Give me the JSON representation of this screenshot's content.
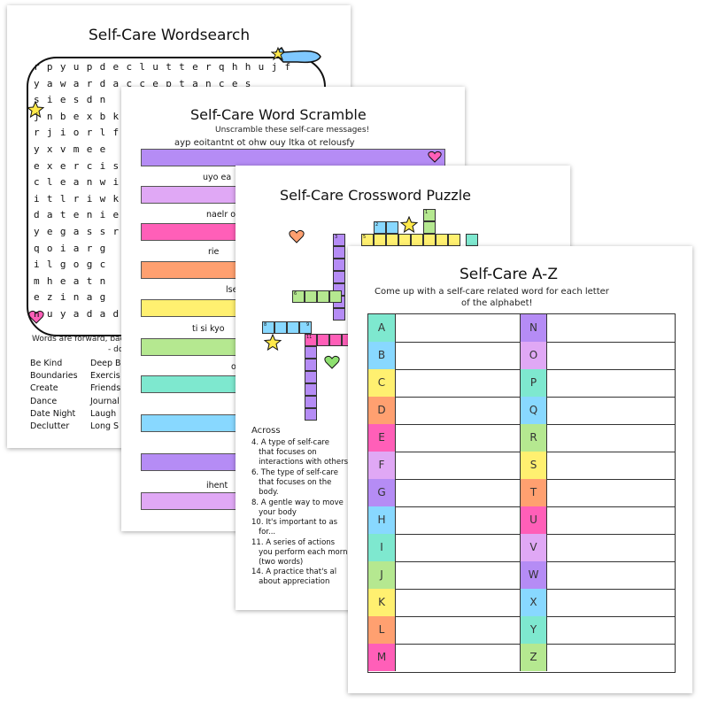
{
  "wordsearch": {
    "title": "Self-Care Wordsearch",
    "rows": [
      "rpyupdeclutterqhhujf",
      "yawardacceptances",
      "siesdn",
      "jnbexbk",
      "rjiorlf",
      "yxvmee",
      "exercis",
      "cleanwi",
      "itlriwk",
      "datenie",
      "yegassr",
      "qoiarg",
      "ilgogc",
      "mheatn",
      "ezinag",
      "nuyadad"
    ],
    "note1": "Words are forward, backward",
    "note2": "- do the thi",
    "words_left": [
      "Be Kind",
      "Boundaries",
      "Create",
      "Dance",
      "Date Night",
      "Declutter"
    ],
    "words_right": [
      "Deep B",
      "Exercis",
      "Friends",
      "Journal",
      "Laugh",
      "Long S"
    ]
  },
  "scramble": {
    "title": "Self-Care Word Scramble",
    "subtitle": "Unscramble these self-care messages!",
    "q1": "ayp eoitantnt ot ohw ouy ltka ot relousfy",
    "partials": [
      "uyo ea",
      "naelr o",
      "rie",
      "lse",
      "ti si kyo",
      "o",
      "ihent"
    ],
    "bar_colors": [
      "#b58cf5",
      "#e0a8f5",
      "#ff5fb8",
      "#ffa070",
      "#fff070",
      "#b5e890",
      "#7ee8cf",
      "#88d8ff",
      "#b58cf5",
      "#e0a8f5"
    ]
  },
  "crossword": {
    "title": "Self-Care Crossword Puzzle",
    "numbers": [
      "1",
      "2",
      "3",
      "5",
      "6",
      "8",
      "9",
      "11"
    ],
    "across_label": "Across",
    "clues": [
      "4. A type of self-care\n   that focuses on\n   interactions with others",
      "6. The type of self-care\n   that focuses on the\n   body.",
      "8. A gentle way to move\n   your body",
      "10. It's important to as\n   for...",
      "11. A series of actions\n   you perform each morning\n   (two words)",
      "14. A practice that's al\n   about appreciation"
    ]
  },
  "az": {
    "title": "Self-Care A-Z",
    "subtitle1": "Come up with a self-care related word for each letter",
    "subtitle2": "of the alphabet!",
    "left": [
      "A",
      "B",
      "C",
      "D",
      "E",
      "F",
      "G",
      "H",
      "I",
      "J",
      "K",
      "L",
      "M"
    ],
    "right": [
      "N",
      "O",
      "P",
      "Q",
      "R",
      "S",
      "T",
      "U",
      "V",
      "W",
      "X",
      "Y",
      "Z"
    ],
    "colors": [
      "#7ee8cf",
      "#88d8ff",
      "#fff070",
      "#ffa070",
      "#ff5fb8",
      "#e0a8f5",
      "#b58cf5",
      "#88d8ff",
      "#7ee8cf",
      "#b5e890",
      "#fff070",
      "#ffa070",
      "#ff5fb8"
    ],
    "colors_right": [
      "#b58cf5",
      "#e0a8f5",
      "#7ee8cf",
      "#88d8ff",
      "#b5e890",
      "#fff070",
      "#ffa070",
      "#ff5fb8",
      "#e0a8f5",
      "#b58cf5",
      "#88d8ff",
      "#7ee8cf",
      "#b5e890"
    ]
  },
  "icons": [
    "star-icon",
    "heart-icon",
    "hand-icon"
  ]
}
